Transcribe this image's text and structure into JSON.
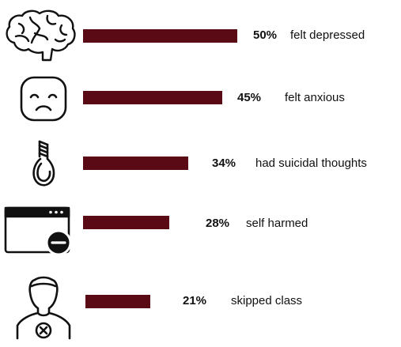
{
  "chart_data": {
    "type": "bar",
    "orientation": "horizontal",
    "colors": {
      "bar": "#5a0a14"
    },
    "items": [
      {
        "icon": "brain-icon",
        "value": 50,
        "value_label": "50%",
        "label": "felt depressed"
      },
      {
        "icon": "sad-face-icon",
        "value": 45,
        "value_label": "45%",
        "label": "felt anxious"
      },
      {
        "icon": "noose-icon",
        "value": 34,
        "value_label": "34%",
        "label": "had suicidal thoughts"
      },
      {
        "icon": "browser-minus-icon",
        "value": 28,
        "value_label": "28%",
        "label": "self harmed"
      },
      {
        "icon": "person-x-icon",
        "value": 21,
        "value_label": "21%",
        "label": "skipped class"
      }
    ]
  }
}
